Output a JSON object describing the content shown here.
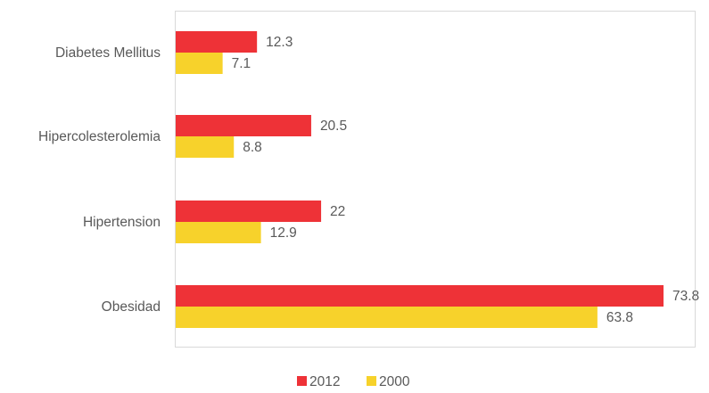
{
  "chart_data": {
    "type": "bar",
    "orientation": "horizontal",
    "categories": [
      "Diabetes Mellitus",
      "Hipercolesterolemia",
      "Hipertension",
      "Obesidad"
    ],
    "series": [
      {
        "name": "2012",
        "values": [
          12.3,
          20.5,
          22,
          73.8
        ],
        "labels": [
          "12.3",
          "20.5",
          "22",
          "73.8"
        ],
        "color": "#ee3237"
      },
      {
        "name": "2000",
        "values": [
          7.1,
          8.8,
          12.9,
          63.8
        ],
        "labels": [
          "7.1",
          "8.8",
          "12.9",
          "63.8"
        ],
        "color": "#f7d22b"
      }
    ],
    "xlim": [
      0,
      73.8
    ],
    "grid": false,
    "legend_position": "bottom"
  }
}
